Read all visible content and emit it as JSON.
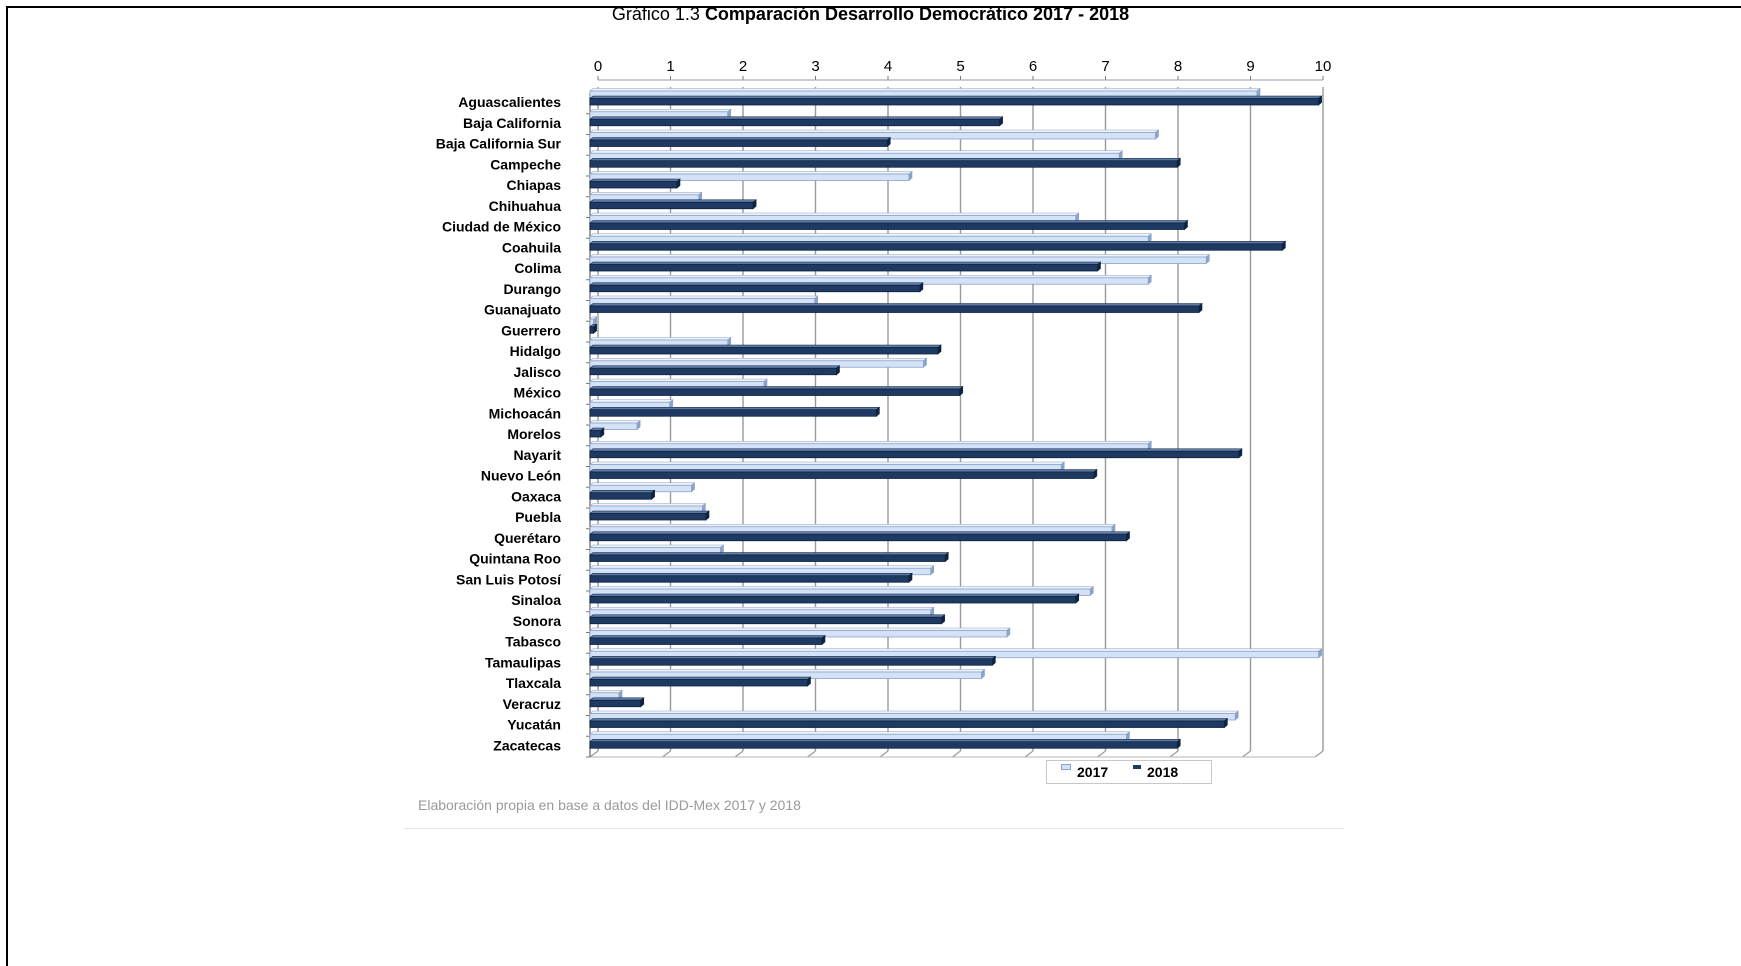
{
  "chart_title": {
    "prefix": "Gráfico 1.3",
    "main": "Comparación Desarrollo Democrático 2017 - 2018"
  },
  "source_note": "Elaboración propia en base a datos del IDD-Mex 2017 y 2018",
  "colors": {
    "series_2017": "#d4e2f7",
    "series_2017_edge": "#8aa3c7",
    "series_2018": "#1e3a63",
    "series_2018_edge": "#0f2340",
    "grid": "#9a9a9a"
  },
  "chart_data": {
    "type": "bar",
    "orientation": "horizontal",
    "title": "Comparación Desarrollo Democrático 2017 - 2018",
    "xlabel": "",
    "ylabel": "",
    "xlim": [
      0,
      10
    ],
    "x_ticks": [
      "0",
      "1",
      "2",
      "3",
      "4",
      "5",
      "6",
      "7",
      "8",
      "9",
      "10"
    ],
    "x_axis_position": "top",
    "grid": true,
    "legend_position": "bottom-right",
    "categories": [
      "Aguascalientes",
      "Baja California",
      "Baja California Sur",
      "Campeche",
      "Chiapas",
      "Chihuahua",
      "Ciudad de México",
      "Coahuila",
      "Colima",
      "Durango",
      "Guanajuato",
      "Guerrero",
      "Hidalgo",
      "Jalisco",
      "México",
      "Michoacán",
      "Morelos",
      "Nayarit",
      "Nuevo León",
      "Oaxaca",
      "Puebla",
      "Querétaro",
      "Quintana Roo",
      "San Luis Potosí",
      "Sinaloa",
      "Sonora",
      "Tabasco",
      "Tamaulipas",
      "Tlaxcala",
      "Veracruz",
      "Yucatán",
      "Zacatecas"
    ],
    "series": [
      {
        "name": "2017",
        "values": [
          9.2,
          1.9,
          7.8,
          7.3,
          4.4,
          1.5,
          6.7,
          7.7,
          8.5,
          7.7,
          3.1,
          0.05,
          1.9,
          4.6,
          2.4,
          1.1,
          0.65,
          7.7,
          6.5,
          1.4,
          1.55,
          7.2,
          1.8,
          4.7,
          6.9,
          4.7,
          5.75,
          10.05,
          5.4,
          0.4,
          8.9,
          7.4
        ]
      },
      {
        "name": "2018",
        "values": [
          10.05,
          5.65,
          4.1,
          8.1,
          1.2,
          2.25,
          8.2,
          9.55,
          7.0,
          4.55,
          8.4,
          0.05,
          4.8,
          3.4,
          5.1,
          3.95,
          0.15,
          8.95,
          6.95,
          0.85,
          1.6,
          7.4,
          4.9,
          4.4,
          6.7,
          4.85,
          3.2,
          5.55,
          3.0,
          0.7,
          8.75,
          8.1
        ]
      }
    ]
  }
}
